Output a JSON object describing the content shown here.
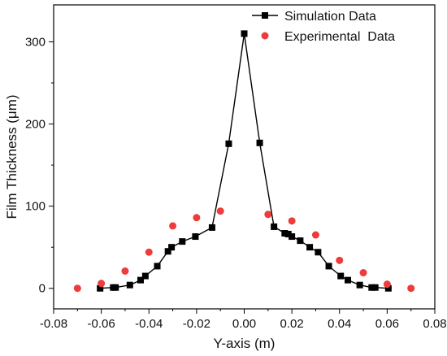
{
  "chart_data": {
    "type": "scatter",
    "xlabel": "Y-axis (m)",
    "ylabel": "Film Thickness (μm)",
    "xlim": [
      -0.08,
      0.08
    ],
    "ylim": [
      -25,
      345
    ],
    "xticks": [
      -0.08,
      -0.06,
      -0.04,
      -0.02,
      0.0,
      0.02,
      0.04,
      0.06,
      0.08
    ],
    "xtick_labels": [
      "-0.08",
      "-0.06",
      "-0.04",
      "-0.02",
      "0.00",
      "0.02",
      "0.04",
      "0.06",
      "0.08"
    ],
    "yticks": [
      0,
      100,
      200,
      300
    ],
    "ytick_labels": [
      "0",
      "100",
      "200",
      "300"
    ],
    "grid": false,
    "legend_position": "top-right",
    "series": [
      {
        "name": "Simulation Data",
        "style": "line-square",
        "color": "#000000",
        "x": [
          -0.0605,
          -0.055,
          -0.054,
          -0.048,
          -0.0435,
          -0.0415,
          -0.0365,
          -0.032,
          -0.0305,
          -0.026,
          -0.0205,
          -0.0135,
          -0.0065,
          0.0,
          0.0065,
          0.0125,
          0.017,
          0.0185,
          0.02,
          0.0235,
          0.0275,
          0.031,
          0.0355,
          0.0405,
          0.0435,
          0.0485,
          0.0535,
          0.055,
          0.0605
        ],
        "y": [
          0,
          1,
          1,
          4,
          10,
          15,
          27,
          45,
          50,
          57,
          63,
          74,
          176,
          310,
          177,
          75,
          67,
          66,
          63,
          58,
          50,
          44,
          27,
          15,
          10,
          4,
          1,
          1,
          0
        ]
      },
      {
        "name": "Experimental  Data",
        "style": "dot",
        "color": "#ee3b3b",
        "x": [
          -0.07,
          -0.06,
          -0.05,
          -0.04,
          -0.03,
          -0.02,
          -0.01,
          0.01,
          0.02,
          0.03,
          0.04,
          0.05,
          0.06,
          0.07
        ],
        "y": [
          0,
          6,
          21,
          44,
          76,
          86,
          94,
          90,
          82,
          65,
          34,
          19,
          5,
          0
        ]
      }
    ]
  }
}
